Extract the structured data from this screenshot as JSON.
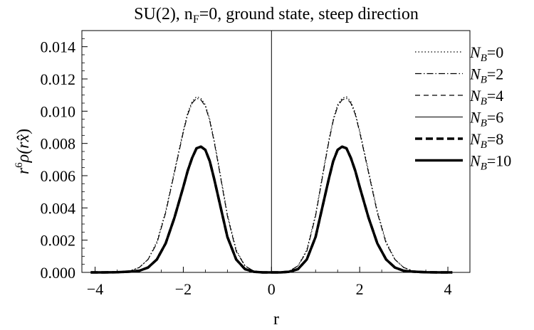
{
  "chart_data": {
    "type": "line",
    "title": "SU(2), n_F=0, ground state, steep direction",
    "title_parts": {
      "pre": "SU(2), n",
      "sub": "F",
      "post": "=0, ground state, steep direction"
    },
    "xlabel": "r",
    "ylabel_parts": {
      "r": "r",
      "exp": "6",
      "rho": "ρ(r",
      "xhat": "x̂",
      "close": ")"
    },
    "xlim": [
      -4.3,
      4.5
    ],
    "ylim": [
      0,
      0.015
    ],
    "xticks": [
      -4,
      -2,
      0,
      2,
      4
    ],
    "xtick_labels": [
      "−4",
      "−2",
      "0",
      "2",
      "4"
    ],
    "yticks": [
      0,
      0.002,
      0.004,
      0.006,
      0.008,
      0.01,
      0.012,
      0.014
    ],
    "ytick_labels": [
      "0.000",
      "0.002",
      "0.004",
      "0.006",
      "0.008",
      "0.010",
      "0.012",
      "0.014"
    ],
    "grid": false,
    "legend_position": "right",
    "x": [
      -4.1,
      -3.8,
      -3.5,
      -3.2,
      -3.0,
      -2.8,
      -2.6,
      -2.4,
      -2.2,
      -2.0,
      -1.9,
      -1.8,
      -1.7,
      -1.6,
      -1.5,
      -1.4,
      -1.3,
      -1.2,
      -1.0,
      -0.8,
      -0.6,
      -0.4,
      -0.2,
      0.0,
      0.2,
      0.4,
      0.6,
      0.8,
      1.0,
      1.2,
      1.3,
      1.4,
      1.5,
      1.6,
      1.7,
      1.8,
      1.9,
      2.0,
      2.2,
      2.4,
      2.6,
      2.8,
      3.0,
      3.2,
      3.5,
      3.8,
      4.1
    ],
    "series": [
      {
        "label_pre": "N",
        "label_sub": "B",
        "label_post": "=0",
        "style": "dotted",
        "values": [
          0,
          0,
          2e-05,
          0.0001,
          0.0003,
          0.0008,
          0.0019,
          0.0038,
          0.0063,
          0.0088,
          0.0099,
          0.0106,
          0.0109,
          0.0108,
          0.0104,
          0.0095,
          0.0082,
          0.0067,
          0.0036,
          0.0014,
          0.0004,
          8e-05,
          1e-05,
          0,
          1e-05,
          8e-05,
          0.0004,
          0.0014,
          0.0036,
          0.0067,
          0.0082,
          0.0095,
          0.0104,
          0.0108,
          0.0109,
          0.0106,
          0.0099,
          0.0088,
          0.0063,
          0.0038,
          0.0019,
          0.0008,
          0.0003,
          0.0001,
          2e-05,
          0,
          0
        ]
      },
      {
        "label_pre": "N",
        "label_sub": "B",
        "label_post": "=2",
        "style": "dashdot",
        "values": [
          0,
          0,
          2e-05,
          0.0001,
          0.0003,
          0.0008,
          0.0018,
          0.0037,
          0.0062,
          0.0087,
          0.0098,
          0.0105,
          0.0108,
          0.0107,
          0.0103,
          0.0094,
          0.0081,
          0.0066,
          0.0035,
          0.0013,
          0.0004,
          8e-05,
          1e-05,
          0,
          1e-05,
          8e-05,
          0.0004,
          0.0013,
          0.0035,
          0.0066,
          0.0081,
          0.0094,
          0.0103,
          0.0107,
          0.0108,
          0.0105,
          0.0098,
          0.0087,
          0.0062,
          0.0037,
          0.0018,
          0.0008,
          0.0003,
          0.0001,
          2e-05,
          0,
          0
        ]
      },
      {
        "label_pre": "N",
        "label_sub": "B",
        "label_post": "=4",
        "style": "dashed",
        "values": [
          0,
          0,
          1e-05,
          5e-05,
          0.0001,
          0.0003,
          0.0008,
          0.0018,
          0.0034,
          0.0053,
          0.0063,
          0.0071,
          0.0077,
          0.0078,
          0.0076,
          0.0069,
          0.0058,
          0.0046,
          0.0022,
          0.0008,
          0.0002,
          4e-05,
          0,
          0,
          0,
          4e-05,
          0.0002,
          0.0008,
          0.0022,
          0.0046,
          0.0058,
          0.0069,
          0.0076,
          0.0078,
          0.0077,
          0.0071,
          0.0063,
          0.0053,
          0.0034,
          0.0018,
          0.0008,
          0.0003,
          0.0001,
          5e-05,
          1e-05,
          0,
          0
        ]
      },
      {
        "label_pre": "N",
        "label_sub": "B",
        "label_post": "=6",
        "style": "thin",
        "values": [
          0,
          0,
          1e-05,
          5e-05,
          0.0001,
          0.0003,
          0.0008,
          0.0018,
          0.0034,
          0.0053,
          0.0063,
          0.0071,
          0.0077,
          0.0078,
          0.0076,
          0.0069,
          0.0058,
          0.0046,
          0.0022,
          0.0008,
          0.0002,
          4e-05,
          0,
          0,
          0,
          4e-05,
          0.0002,
          0.0008,
          0.0022,
          0.0046,
          0.0058,
          0.0069,
          0.0076,
          0.0078,
          0.0077,
          0.0071,
          0.0063,
          0.0053,
          0.0034,
          0.0018,
          0.0008,
          0.0003,
          0.0001,
          5e-05,
          1e-05,
          0,
          0
        ]
      },
      {
        "label_pre": "N",
        "label_sub": "B",
        "label_post": "=8",
        "style": "thickdashed",
        "values": [
          0,
          0,
          1e-05,
          5e-05,
          0.0001,
          0.0003,
          0.0008,
          0.0018,
          0.0034,
          0.0053,
          0.0063,
          0.0071,
          0.0077,
          0.0078,
          0.0076,
          0.0069,
          0.0058,
          0.0046,
          0.0022,
          0.0008,
          0.0002,
          4e-05,
          0,
          0,
          0,
          4e-05,
          0.0002,
          0.0008,
          0.0022,
          0.0046,
          0.0058,
          0.0069,
          0.0076,
          0.0078,
          0.0077,
          0.0071,
          0.0063,
          0.0053,
          0.0034,
          0.0018,
          0.0008,
          0.0003,
          0.0001,
          5e-05,
          1e-05,
          0,
          0
        ]
      },
      {
        "label_pre": "N",
        "label_sub": "B",
        "label_post": "=10",
        "style": "thick",
        "values": [
          0,
          0,
          1e-05,
          5e-05,
          0.0001,
          0.0003,
          0.0008,
          0.0018,
          0.0034,
          0.0053,
          0.0063,
          0.0071,
          0.0077,
          0.0078,
          0.0076,
          0.0069,
          0.0058,
          0.0046,
          0.0022,
          0.0008,
          0.0002,
          4e-05,
          0,
          0,
          0,
          4e-05,
          0.0002,
          0.0008,
          0.0022,
          0.0046,
          0.0058,
          0.0069,
          0.0076,
          0.0078,
          0.0077,
          0.0071,
          0.0063,
          0.0053,
          0.0034,
          0.0018,
          0.0008,
          0.0003,
          0.0001,
          5e-05,
          1e-05,
          0,
          0
        ]
      }
    ]
  }
}
